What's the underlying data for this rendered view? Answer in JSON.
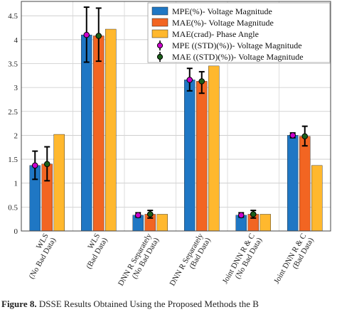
{
  "chart_data": {
    "type": "bar",
    "categories": [
      [
        "WLS",
        "(No Bad Data)"
      ],
      [
        "WLS",
        "(Bad Data)"
      ],
      [
        "DNN R Separately",
        "(No Bad Data)"
      ],
      [
        "DNN R Separately",
        "(Bad Data)"
      ],
      [
        "Joint DNN R & C",
        "(No Bad Data)"
      ],
      [
        "Joint DNN R & C",
        "(Bad Data)"
      ]
    ],
    "series": [
      {
        "name": "MPE(%)- Voltage Magnitude",
        "color": "#1f77c4",
        "values": [
          1.37,
          4.1,
          0.33,
          3.16,
          0.33,
          2.0
        ]
      },
      {
        "name": "MAE(%)- Voltage Magnitude",
        "color": "#f26522",
        "values": [
          1.4,
          4.08,
          0.35,
          3.13,
          0.35,
          1.98
        ]
      },
      {
        "name": "MAE(crad)- Phase Angle",
        "color": "#ffb82e",
        "values": [
          2.02,
          4.22,
          0.35,
          3.45,
          0.35,
          1.37
        ]
      }
    ],
    "errorbars": [
      {
        "name": "MPE ((STD)(%))- Voltage Magnitude",
        "marker_color": "#cc00cc",
        "series_index": 0,
        "low": [
          1.08,
          3.53,
          0.29,
          2.93,
          0.29,
          1.95
        ],
        "high": [
          1.67,
          4.68,
          0.38,
          3.4,
          0.38,
          2.05
        ]
      },
      {
        "name": "MAE ((STD)(%))- Voltage Magnitude",
        "marker_color": "#1a5f1a",
        "series_index": 1,
        "low": [
          1.05,
          3.55,
          0.27,
          2.88,
          0.27,
          1.78
        ],
        "high": [
          1.76,
          4.66,
          0.43,
          3.33,
          0.43,
          2.19
        ]
      }
    ],
    "yticks": [
      "0",
      "0.5",
      "1",
      "1.5",
      "2",
      "2.5",
      "3",
      "3.5",
      "4",
      "4.5"
    ],
    "ylim": [
      0,
      4.8
    ],
    "grid": "both",
    "legend": "top-right"
  },
  "caption": {
    "label": "Figure 8.",
    "text": " DSSE Results Obtained Using the Proposed Methods the B"
  }
}
